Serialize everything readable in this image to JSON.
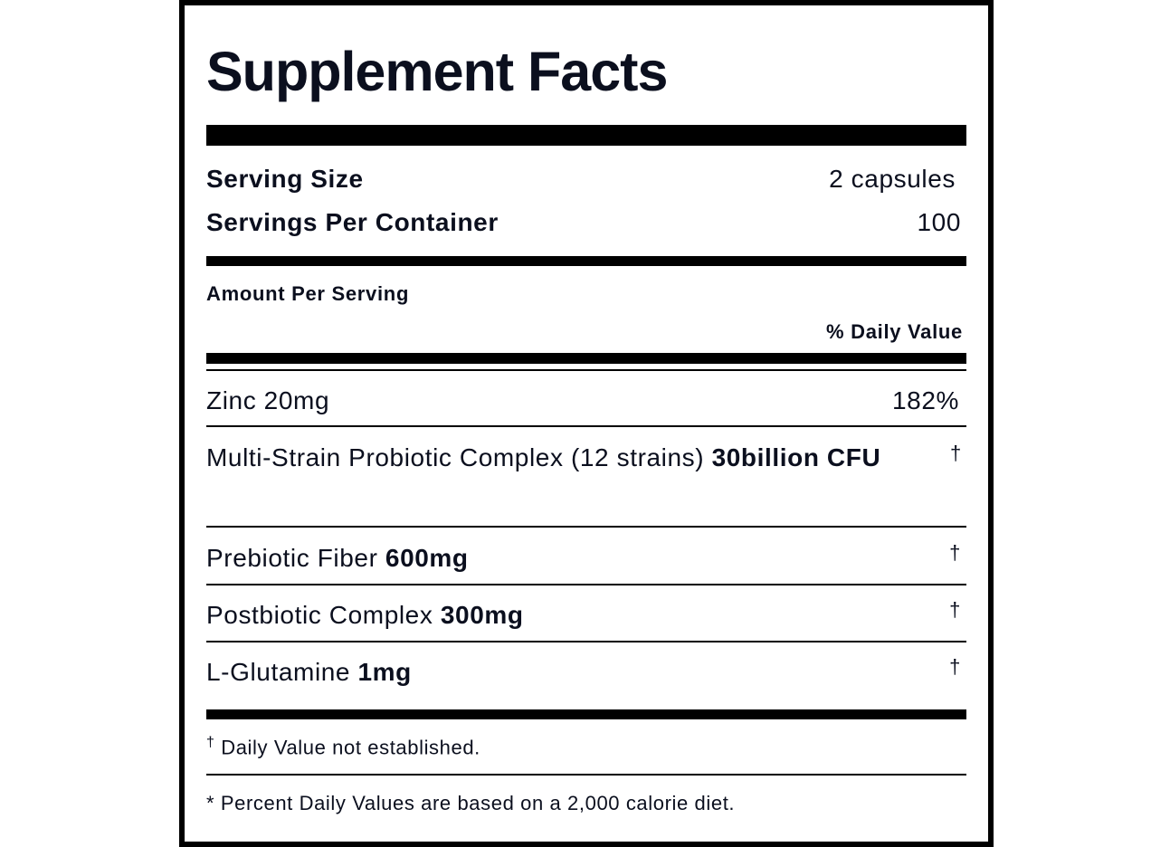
{
  "title": "Supplement Facts",
  "serving": {
    "size_label": "Serving Size",
    "size_value": "2 capsules",
    "per_container_label": "Servings Per Container",
    "per_container_value": "100"
  },
  "amount_per_serving": "Amount Per Serving",
  "daily_value_header": "% Daily Value",
  "ingredients": [
    {
      "name": "Zinc 20mg",
      "amount": "",
      "dv": "182%"
    },
    {
      "name": "Multi-Strain Probiotic Complex (12 strains) ",
      "amount": "30billion CFU",
      "dv": "†"
    },
    {
      "name": "Prebiotic Fiber ",
      "amount": "600mg",
      "dv": "†"
    },
    {
      "name": "Postbiotic Complex ",
      "amount": "300mg",
      "dv": "†"
    },
    {
      "name": "L-Glutamine ",
      "amount": "1mg",
      "dv": "†"
    }
  ],
  "footnotes": {
    "dagger_mark": "†",
    "dagger_text": " Daily Value not established.",
    "percent_note": "* Percent Daily Values are based on a 2,000 calorie diet."
  },
  "colors": {
    "text": "#0b0f1e",
    "rules": "#000000"
  }
}
